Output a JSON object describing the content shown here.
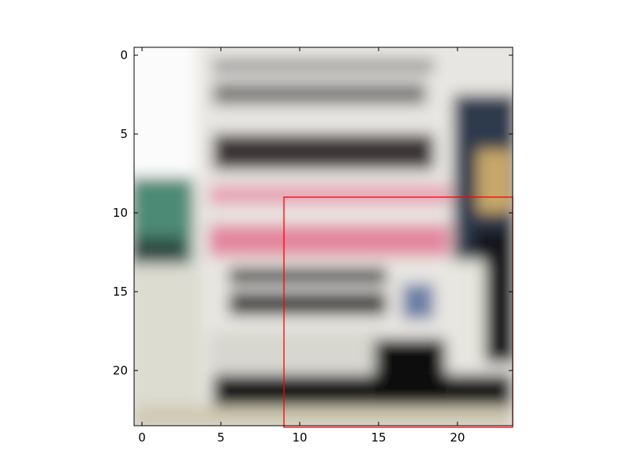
{
  "chart_data": {
    "type": "heatmap",
    "title": "",
    "xlabel": "",
    "ylabel": "",
    "grid": false,
    "xlim": [
      -0.5,
      23.5
    ],
    "ylim": [
      23.5,
      -0.5
    ],
    "xticks": [
      0,
      5,
      10,
      15,
      20
    ],
    "yticks": [
      0,
      5,
      10,
      15,
      20
    ],
    "xtick_labels": [
      "0",
      "5",
      "10",
      "15",
      "20"
    ],
    "ytick_labels": [
      "0",
      "5",
      "10",
      "15",
      "20"
    ],
    "image": {
      "description_colors": {
        "background_light": "#e8e6e2",
        "sky": "#fbfbfb",
        "dark_band": "#141218",
        "pink_band": "#e7a2b4",
        "teal": "#4d8a76",
        "navy": "#2d3a4e",
        "skin": "#c7a86a"
      }
    },
    "overlay_rectangle": {
      "x_start": 9,
      "y_start": 9,
      "x_end": 23.5,
      "y_end": 23.5,
      "color": "#ff0000"
    }
  }
}
